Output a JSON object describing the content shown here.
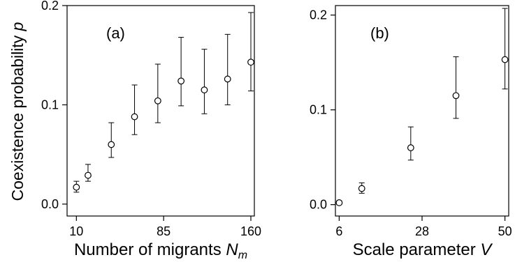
{
  "chart_data": [
    {
      "type": "scatter",
      "panel_label": "(a)",
      "xlabel_text": "Number of migrants ",
      "xlabel_symbol": "N",
      "xlabel_subscript": "m",
      "ylabel_text": "Coexistence probability ",
      "ylabel_symbol": "p",
      "xlim": [
        2,
        163
      ],
      "ylim": [
        -0.012,
        0.2
      ],
      "xticks": [
        10,
        85,
        160
      ],
      "yticks": [
        0.0,
        0.1,
        0.2
      ],
      "ytick_labels": [
        "0.0",
        "0.1",
        "0.2"
      ],
      "error_bars": true,
      "points": [
        {
          "x": 10,
          "y": 0.017,
          "low": 0.012,
          "high": 0.023
        },
        {
          "x": 20,
          "y": 0.029,
          "low": 0.023,
          "high": 0.04
        },
        {
          "x": 40,
          "y": 0.06,
          "low": 0.047,
          "high": 0.082
        },
        {
          "x": 60,
          "y": 0.088,
          "low": 0.07,
          "high": 0.12
        },
        {
          "x": 80,
          "y": 0.104,
          "low": 0.082,
          "high": 0.141
        },
        {
          "x": 100,
          "y": 0.124,
          "low": 0.099,
          "high": 0.168
        },
        {
          "x": 120,
          "y": 0.115,
          "low": 0.091,
          "high": 0.156
        },
        {
          "x": 140,
          "y": 0.126,
          "low": 0.1,
          "high": 0.171
        },
        {
          "x": 160,
          "y": 0.143,
          "low": 0.114,
          "high": 0.193
        }
      ]
    },
    {
      "type": "scatter",
      "panel_label": "(b)",
      "xlabel_text": "Scale parameter ",
      "xlabel_symbol": "V",
      "xlabel_subscript": "",
      "ylabel_text": "",
      "ylabel_symbol": "",
      "xlim": [
        5,
        51
      ],
      "ylim": [
        -0.012,
        0.21
      ],
      "xticks": [
        6,
        28,
        50
      ],
      "yticks": [
        0.0,
        0.1,
        0.2
      ],
      "ytick_labels": [
        "0.0",
        "0.1",
        "0.2"
      ],
      "error_bars": true,
      "points": [
        {
          "x": 6,
          "y": 0.002,
          "low": 0.001,
          "high": 0.004
        },
        {
          "x": 12,
          "y": 0.017,
          "low": 0.012,
          "high": 0.023
        },
        {
          "x": 25,
          "y": 0.06,
          "low": 0.047,
          "high": 0.082
        },
        {
          "x": 37,
          "y": 0.115,
          "low": 0.091,
          "high": 0.156
        },
        {
          "x": 50,
          "y": 0.153,
          "low": 0.122,
          "high": 0.207
        }
      ]
    }
  ]
}
